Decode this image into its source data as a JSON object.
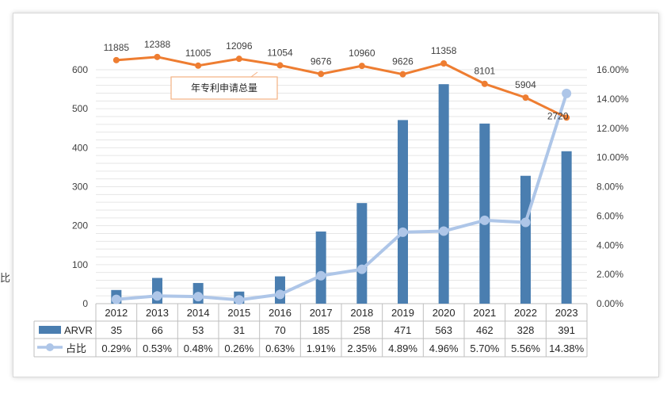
{
  "side_text": "比",
  "chart_data": {
    "type": "bar",
    "categories": [
      "2012",
      "2013",
      "2014",
      "2015",
      "2016",
      "2017",
      "2018",
      "2019",
      "2020",
      "2021",
      "2022",
      "2023"
    ],
    "series": [
      {
        "name": "ARVR",
        "kind": "bar",
        "axis": "left",
        "color": "#4a7eb0",
        "values": [
          35,
          66,
          53,
          31,
          70,
          185,
          258,
          471,
          563,
          462,
          328,
          391
        ],
        "table_labels": [
          "35",
          "66",
          "53",
          "31",
          "70",
          "185",
          "258",
          "471",
          "563",
          "462",
          "328",
          "391"
        ]
      },
      {
        "name": "占比",
        "kind": "line",
        "axis": "right",
        "color": "#aec6e8",
        "values": [
          0.29,
          0.53,
          0.48,
          0.26,
          0.63,
          1.91,
          2.35,
          4.89,
          4.96,
          5.7,
          5.56,
          14.38
        ],
        "table_labels": [
          "0.29%",
          "0.53%",
          "0.48%",
          "0.26%",
          "0.63%",
          "1.91%",
          "2.35%",
          "4.89%",
          "4.96%",
          "5.70%",
          "5.56%",
          "14.38%"
        ]
      },
      {
        "name": "年专利申请总量",
        "kind": "line",
        "axis": "none",
        "color": "#ee7d31",
        "values": [
          11885,
          12388,
          11005,
          12096,
          11054,
          9676,
          10960,
          9626,
          11358,
          8101,
          5904,
          2720
        ],
        "point_labels": [
          "11885",
          "12388",
          "11005",
          "12096",
          "11054",
          "9676",
          "10960",
          "9626",
          "11358",
          "8101",
          "5904",
          "2720"
        ]
      }
    ],
    "y_left": {
      "min": 0,
      "max": 600,
      "ticks": [
        "0",
        "100",
        "200",
        "300",
        "400",
        "500",
        "600"
      ]
    },
    "y_right": {
      "min": 0,
      "max": 16,
      "ticks": [
        "0.00%",
        "2.00%",
        "4.00%",
        "6.00%",
        "8.00%",
        "10.00%",
        "12.00%",
        "14.00%",
        "16.00%"
      ]
    },
    "callout": "年专利申请总量",
    "grid": true,
    "legend": "data-table"
  }
}
